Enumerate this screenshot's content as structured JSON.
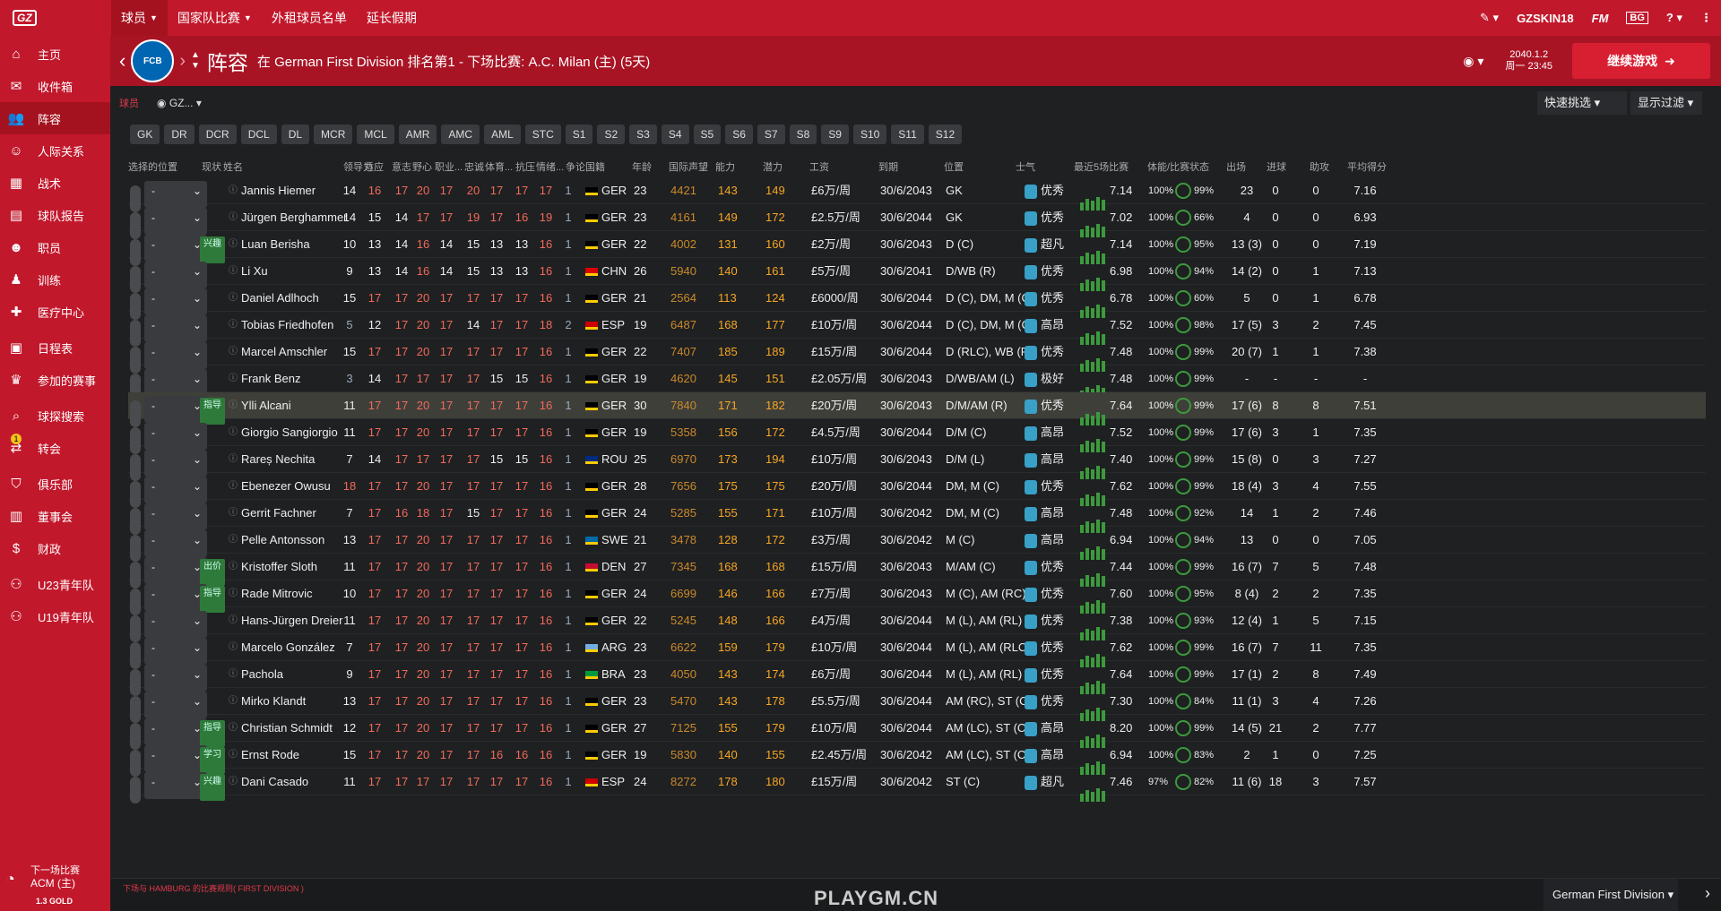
{
  "topbar": {
    "logo": "GZ",
    "menu": [
      "球员",
      "国家队比赛",
      "外租球员名单",
      "延长假期"
    ],
    "manager": "GZSKIN18",
    "fm": "FM",
    "bg": "BG"
  },
  "sidebar": {
    "items": [
      "主页",
      "收件箱",
      "阵容",
      "人际关系",
      "战术",
      "球队报告",
      "职员",
      "训练",
      "医疗中心",
      "日程表",
      "参加的赛事",
      "球探搜索",
      "转会",
      "俱乐部",
      "董事会",
      "财政",
      "U23青年队",
      "U19青年队"
    ],
    "badge": "1",
    "next_match": "下一场比赛",
    "next_opp": "ACM (主)",
    "gold": "1.3 GOLD"
  },
  "header": {
    "title": "阵容",
    "subtitle": "在 German First Division 排名第1 - 下场比赛: A.C. Milan (主) (5天)",
    "date": "2040.1.2",
    "time": "周一 23:45",
    "continue": "继续游戏"
  },
  "filter": {
    "label": "球员",
    "view": "GZ...",
    "quick": "快速挑选",
    "display": "显示过滤"
  },
  "positions": [
    "GK",
    "DR",
    "DCR",
    "DCL",
    "DL",
    "MCR",
    "MCL",
    "AMR",
    "AMC",
    "AML",
    "STC",
    "S1",
    "S2",
    "S3",
    "S4",
    "S5",
    "S6",
    "S7",
    "S8",
    "S9",
    "S10",
    "S11",
    "S12"
  ],
  "columns": {
    "sel": "选择的位置",
    "status": "现状",
    "name": "姓名",
    "lead": "领导力",
    "adapt": "适应",
    "det": "意志",
    "amb": "野心",
    "prof": "职业...",
    "loy": "忠诚",
    "sport": "体育...",
    "pres": "抗压",
    "temp": "情绪...",
    "cont": "争论",
    "nat": "国籍",
    "age": "年龄",
    "rep": "国际声望",
    "ca": "能力",
    "pa": "潜力",
    "wage": "工资",
    "exp": "到期",
    "pos": "位置",
    "morale": "士气",
    "form": "最近5场比赛",
    "cond": "体能/比赛状态",
    "apps": "出场",
    "gls": "进球",
    "ast": "助攻",
    "rat": "平均得分"
  },
  "players": [
    {
      "name": "Jannis Hiemer",
      "tag": "",
      "a": [
        "14",
        "16",
        "17",
        "20",
        "17",
        "20",
        "17",
        "17",
        "17",
        "1"
      ],
      "nat": "GER",
      "age": "23",
      "rep": "4421",
      "ca": "143",
      "pa": "149",
      "wage": "£6万/周",
      "exp": "30/6/2043",
      "pos": "GK",
      "morale": "优秀",
      "rating": "7.14",
      "cond": "100%",
      "sharp": "99%",
      "apps": "23",
      "gls": "0",
      "ast": "0",
      "avg": "7.16"
    },
    {
      "name": "Jürgen Berghammer",
      "tag": "",
      "a": [
        "14",
        "15",
        "14",
        "17",
        "17",
        "19",
        "17",
        "16",
        "19",
        "1"
      ],
      "nat": "GER",
      "age": "23",
      "rep": "4161",
      "ca": "149",
      "pa": "172",
      "wage": "£2.5万/周",
      "exp": "30/6/2044",
      "pos": "GK",
      "morale": "优秀",
      "rating": "7.02",
      "cond": "100%",
      "sharp": "66%",
      "apps": "4",
      "gls": "0",
      "ast": "0",
      "avg": "6.93"
    },
    {
      "name": "Luan Berisha",
      "tag": "兴趣",
      "a": [
        "10",
        "13",
        "14",
        "16",
        "14",
        "15",
        "13",
        "13",
        "16",
        "1"
      ],
      "nat": "GER",
      "age": "22",
      "rep": "4002",
      "ca": "131",
      "pa": "160",
      "wage": "£2万/周",
      "exp": "30/6/2043",
      "pos": "D (C)",
      "morale": "超凡",
      "rating": "7.14",
      "cond": "100%",
      "sharp": "95%",
      "apps": "13 (3)",
      "gls": "0",
      "ast": "0",
      "avg": "7.19"
    },
    {
      "name": "Li Xu",
      "tag": "",
      "a": [
        "9",
        "13",
        "14",
        "16",
        "14",
        "15",
        "13",
        "13",
        "16",
        "1"
      ],
      "nat": "CHN",
      "age": "26",
      "rep": "5940",
      "ca": "140",
      "pa": "161",
      "wage": "£5万/周",
      "exp": "30/6/2041",
      "pos": "D/WB (R)",
      "morale": "优秀",
      "rating": "6.98",
      "cond": "100%",
      "sharp": "94%",
      "apps": "14 (2)",
      "gls": "0",
      "ast": "1",
      "avg": "7.13"
    },
    {
      "name": "Daniel Adlhoch",
      "tag": "",
      "a": [
        "15",
        "17",
        "17",
        "20",
        "17",
        "17",
        "17",
        "17",
        "16",
        "1"
      ],
      "nat": "GER",
      "age": "21",
      "rep": "2564",
      "ca": "113",
      "pa": "124",
      "wage": "£6000/周",
      "exp": "30/6/2044",
      "pos": "D (C), DM, M (C)",
      "morale": "优秀",
      "rating": "6.78",
      "cond": "100%",
      "sharp": "60%",
      "apps": "5",
      "gls": "0",
      "ast": "1",
      "avg": "6.78"
    },
    {
      "name": "Tobias Friedhofen",
      "tag": "",
      "a": [
        "5",
        "12",
        "17",
        "20",
        "17",
        "14",
        "17",
        "17",
        "18",
        "2"
      ],
      "nat": "ESP",
      "age": "19",
      "rep": "6487",
      "ca": "168",
      "pa": "177",
      "wage": "£10万/周",
      "exp": "30/6/2044",
      "pos": "D (C), DM, M (C)",
      "morale": "高昂",
      "rating": "7.52",
      "cond": "100%",
      "sharp": "98%",
      "apps": "17 (5)",
      "gls": "3",
      "ast": "2",
      "avg": "7.45"
    },
    {
      "name": "Marcel Amschler",
      "tag": "",
      "a": [
        "15",
        "17",
        "17",
        "20",
        "17",
        "17",
        "17",
        "17",
        "16",
        "1"
      ],
      "nat": "GER",
      "age": "22",
      "rep": "7407",
      "ca": "185",
      "pa": "189",
      "wage": "£15万/周",
      "exp": "30/6/2044",
      "pos": "D (RLC), WB (R...",
      "morale": "优秀",
      "rating": "7.48",
      "cond": "100%",
      "sharp": "99%",
      "apps": "20 (7)",
      "gls": "1",
      "ast": "1",
      "avg": "7.38"
    },
    {
      "name": "Frank Benz",
      "tag": "",
      "a": [
        "3",
        "14",
        "17",
        "17",
        "17",
        "17",
        "15",
        "15",
        "16",
        "1"
      ],
      "nat": "GER",
      "age": "19",
      "rep": "4620",
      "ca": "145",
      "pa": "151",
      "wage": "£2.05万/周",
      "exp": "30/6/2043",
      "pos": "D/WB/AM (L)",
      "morale": "极好",
      "rating": "7.48",
      "cond": "100%",
      "sharp": "99%",
      "apps": "-",
      "gls": "-",
      "ast": "-",
      "avg": "-"
    },
    {
      "name": "Ylli Alcani",
      "tag": "指导",
      "a": [
        "11",
        "17",
        "17",
        "20",
        "17",
        "17",
        "17",
        "17",
        "16",
        "1"
      ],
      "nat": "GER",
      "age": "30",
      "rep": "7840",
      "ca": "171",
      "pa": "182",
      "wage": "£20万/周",
      "exp": "30/6/2043",
      "pos": "D/M/AM (R)",
      "morale": "优秀",
      "rating": "7.64",
      "cond": "100%",
      "sharp": "99%",
      "apps": "17 (6)",
      "gls": "8",
      "ast": "8",
      "avg": "7.51"
    },
    {
      "name": "Giorgio Sangiorgio",
      "tag": "",
      "a": [
        "11",
        "17",
        "17",
        "20",
        "17",
        "17",
        "17",
        "17",
        "16",
        "1"
      ],
      "nat": "GER",
      "age": "19",
      "rep": "5358",
      "ca": "156",
      "pa": "172",
      "wage": "£4.5万/周",
      "exp": "30/6/2044",
      "pos": "D/M (C)",
      "morale": "高昂",
      "rating": "7.52",
      "cond": "100%",
      "sharp": "99%",
      "apps": "17 (6)",
      "gls": "3",
      "ast": "1",
      "avg": "7.35"
    },
    {
      "name": "Rareș Nechita",
      "tag": "",
      "a": [
        "7",
        "14",
        "17",
        "17",
        "17",
        "17",
        "15",
        "15",
        "16",
        "1"
      ],
      "nat": "ROU",
      "age": "25",
      "rep": "6970",
      "ca": "173",
      "pa": "194",
      "wage": "£10万/周",
      "exp": "30/6/2043",
      "pos": "D/M (L)",
      "morale": "高昂",
      "rating": "7.40",
      "cond": "100%",
      "sharp": "99%",
      "apps": "15 (8)",
      "gls": "0",
      "ast": "3",
      "avg": "7.27"
    },
    {
      "name": "Ebenezer Owusu",
      "tag": "",
      "a": [
        "18",
        "17",
        "17",
        "20",
        "17",
        "17",
        "17",
        "17",
        "16",
        "1"
      ],
      "nat": "GER",
      "age": "28",
      "rep": "7656",
      "ca": "175",
      "pa": "175",
      "wage": "£20万/周",
      "exp": "30/6/2044",
      "pos": "DM, M (C)",
      "morale": "优秀",
      "rating": "7.62",
      "cond": "100%",
      "sharp": "99%",
      "apps": "18 (4)",
      "gls": "3",
      "ast": "4",
      "avg": "7.55"
    },
    {
      "name": "Gerrit Fachner",
      "tag": "",
      "a": [
        "7",
        "17",
        "16",
        "18",
        "17",
        "15",
        "17",
        "17",
        "16",
        "1"
      ],
      "nat": "GER",
      "age": "24",
      "rep": "5285",
      "ca": "155",
      "pa": "171",
      "wage": "£10万/周",
      "exp": "30/6/2042",
      "pos": "DM, M (C)",
      "morale": "高昂",
      "rating": "7.48",
      "cond": "100%",
      "sharp": "92%",
      "apps": "14",
      "gls": "1",
      "ast": "2",
      "avg": "7.46"
    },
    {
      "name": "Pelle Antonsson",
      "tag": "",
      "a": [
        "13",
        "17",
        "17",
        "20",
        "17",
        "17",
        "17",
        "17",
        "16",
        "1"
      ],
      "nat": "SWE",
      "age": "21",
      "rep": "3478",
      "ca": "128",
      "pa": "172",
      "wage": "£3万/周",
      "exp": "30/6/2042",
      "pos": "M (C)",
      "morale": "高昂",
      "rating": "6.94",
      "cond": "100%",
      "sharp": "94%",
      "apps": "13",
      "gls": "0",
      "ast": "0",
      "avg": "7.05"
    },
    {
      "name": "Kristoffer Sloth",
      "tag": "出价",
      "a": [
        "11",
        "17",
        "17",
        "20",
        "17",
        "17",
        "17",
        "17",
        "16",
        "1"
      ],
      "nat": "DEN",
      "age": "27",
      "rep": "7345",
      "ca": "168",
      "pa": "168",
      "wage": "£15万/周",
      "exp": "30/6/2043",
      "pos": "M/AM (C)",
      "morale": "优秀",
      "rating": "7.44",
      "cond": "100%",
      "sharp": "99%",
      "apps": "16 (7)",
      "gls": "7",
      "ast": "5",
      "avg": "7.48"
    },
    {
      "name": "Rade Mitrovic",
      "tag": "指导",
      "a": [
        "10",
        "17",
        "17",
        "20",
        "17",
        "17",
        "17",
        "17",
        "16",
        "1"
      ],
      "nat": "GER",
      "age": "24",
      "rep": "6699",
      "ca": "146",
      "pa": "166",
      "wage": "£7万/周",
      "exp": "30/6/2043",
      "pos": "M (C), AM (RC)",
      "morale": "优秀",
      "rating": "7.60",
      "cond": "100%",
      "sharp": "95%",
      "apps": "8 (4)",
      "gls": "2",
      "ast": "2",
      "avg": "7.35"
    },
    {
      "name": "Hans-Jürgen Dreier",
      "tag": "",
      "a": [
        "11",
        "17",
        "17",
        "20",
        "17",
        "17",
        "17",
        "17",
        "16",
        "1"
      ],
      "nat": "GER",
      "age": "22",
      "rep": "5245",
      "ca": "148",
      "pa": "166",
      "wage": "£4万/周",
      "exp": "30/6/2044",
      "pos": "M (L), AM (RL)",
      "morale": "优秀",
      "rating": "7.38",
      "cond": "100%",
      "sharp": "93%",
      "apps": "12 (4)",
      "gls": "1",
      "ast": "5",
      "avg": "7.15"
    },
    {
      "name": "Marcelo González",
      "tag": "",
      "a": [
        "7",
        "17",
        "17",
        "20",
        "17",
        "17",
        "17",
        "17",
        "16",
        "1"
      ],
      "nat": "ARG",
      "age": "23",
      "rep": "6622",
      "ca": "159",
      "pa": "179",
      "wage": "£10万/周",
      "exp": "30/6/2044",
      "pos": "M (L), AM (RLC)",
      "morale": "优秀",
      "rating": "7.62",
      "cond": "100%",
      "sharp": "99%",
      "apps": "16 (7)",
      "gls": "7",
      "ast": "11",
      "avg": "7.35"
    },
    {
      "name": "Pachola",
      "tag": "",
      "a": [
        "9",
        "17",
        "17",
        "20",
        "17",
        "17",
        "17",
        "17",
        "16",
        "1"
      ],
      "nat": "BRA",
      "age": "23",
      "rep": "4050",
      "ca": "143",
      "pa": "174",
      "wage": "£6万/周",
      "exp": "30/6/2044",
      "pos": "M (L), AM (RL)",
      "morale": "优秀",
      "rating": "7.64",
      "cond": "100%",
      "sharp": "99%",
      "apps": "17 (1)",
      "gls": "2",
      "ast": "8",
      "avg": "7.49"
    },
    {
      "name": "Mirko Klandt",
      "tag": "",
      "a": [
        "13",
        "17",
        "17",
        "20",
        "17",
        "17",
        "17",
        "17",
        "16",
        "1"
      ],
      "nat": "GER",
      "age": "23",
      "rep": "5470",
      "ca": "143",
      "pa": "178",
      "wage": "£5.5万/周",
      "exp": "30/6/2044",
      "pos": "AM (RC), ST (C)",
      "morale": "优秀",
      "rating": "7.30",
      "cond": "100%",
      "sharp": "84%",
      "apps": "11 (1)",
      "gls": "3",
      "ast": "4",
      "avg": "7.26"
    },
    {
      "name": "Christian Schmidt",
      "tag": "指导",
      "a": [
        "12",
        "17",
        "17",
        "20",
        "17",
        "17",
        "17",
        "17",
        "16",
        "1"
      ],
      "nat": "GER",
      "age": "27",
      "rep": "7125",
      "ca": "155",
      "pa": "179",
      "wage": "£10万/周",
      "exp": "30/6/2044",
      "pos": "AM (LC), ST (C)",
      "morale": "高昂",
      "rating": "8.20",
      "cond": "100%",
      "sharp": "99%",
      "apps": "14 (5)",
      "gls": "21",
      "ast": "2",
      "avg": "7.77"
    },
    {
      "name": "Ernst Rode",
      "tag": "学习",
      "a": [
        "15",
        "17",
        "17",
        "20",
        "17",
        "17",
        "16",
        "16",
        "16",
        "1"
      ],
      "nat": "GER",
      "age": "19",
      "rep": "5830",
      "ca": "140",
      "pa": "155",
      "wage": "£2.45万/周",
      "exp": "30/6/2042",
      "pos": "AM (LC), ST (C)",
      "morale": "高昂",
      "rating": "6.94",
      "cond": "100%",
      "sharp": "83%",
      "apps": "2",
      "gls": "1",
      "ast": "0",
      "avg": "7.25"
    },
    {
      "name": "Dani Casado",
      "tag": "兴趣",
      "a": [
        "11",
        "17",
        "17",
        "17",
        "17",
        "17",
        "17",
        "17",
        "16",
        "1"
      ],
      "nat": "ESP",
      "age": "24",
      "rep": "8272",
      "ca": "178",
      "pa": "180",
      "wage": "£15万/周",
      "exp": "30/6/2042",
      "pos": "ST (C)",
      "morale": "超凡",
      "rating": "7.46",
      "cond": "97%",
      "sharp": "82%",
      "apps": "11 (6)",
      "gls": "18",
      "ast": "3",
      "avg": "7.57"
    }
  ],
  "footer": {
    "note": "下场与 HAMBURG 的比赛规则( FIRST DIVISION )",
    "league": "German First Division",
    "watermark": "PLAYGM.CN"
  },
  "colors": {
    "brand": "#c2182c",
    "sidebar_active": "#a5121f",
    "attr_high": "#f06a5a",
    "rep": "#f5a623"
  }
}
